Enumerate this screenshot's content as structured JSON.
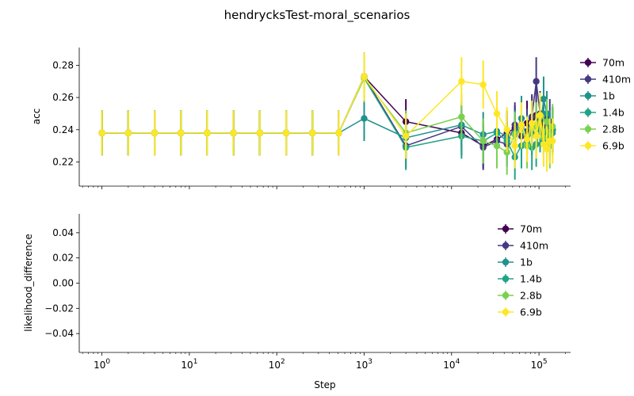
{
  "chart_data": [
    {
      "type": "line",
      "title": "hendrycksTest-moral_scenarios",
      "xlabel": "",
      "ylabel": "acc",
      "xscale": "log",
      "xlim": [
        0.55,
        230000
      ],
      "ylim": [
        0.205,
        0.291
      ],
      "yticks": [
        "0.22",
        "0.24",
        "0.26",
        "0.28"
      ],
      "legend_position": "right-outside",
      "colors": [
        "#440154",
        "#443983",
        "#21918c",
        "#20a386",
        "#7ad151",
        "#fde725"
      ],
      "series": [
        {
          "name": "70m",
          "x": [
            1,
            2,
            4,
            8,
            16,
            32,
            64,
            128,
            256,
            512,
            1000,
            3000,
            13000,
            23000,
            33000,
            43000,
            53000,
            63000,
            73000,
            83000,
            93000,
            103000,
            113000,
            123000,
            133000,
            143000
          ],
          "y": [
            0.238,
            0.238,
            0.238,
            0.238,
            0.238,
            0.238,
            0.238,
            0.238,
            0.238,
            0.238,
            0.273,
            0.245,
            0.238,
            0.23,
            0.234,
            0.238,
            0.241,
            0.243,
            0.244,
            0.247,
            0.249,
            0.246,
            0.238,
            0.242,
            0.236,
            0.24
          ],
          "err": [
            0.014,
            0.014,
            0.014,
            0.014,
            0.014,
            0.014,
            0.014,
            0.014,
            0.014,
            0.014,
            0.015,
            0.014,
            0.014,
            0.014,
            0.014,
            0.014,
            0.014,
            0.014,
            0.014,
            0.014,
            0.014,
            0.014,
            0.014,
            0.014,
            0.014,
            0.014
          ]
        },
        {
          "name": "410m",
          "x": [
            1,
            2,
            4,
            8,
            16,
            32,
            64,
            128,
            256,
            512,
            1000,
            3000,
            13000,
            23000,
            33000,
            43000,
            53000,
            63000,
            73000,
            83000,
            93000,
            103000,
            113000,
            123000,
            133000,
            143000
          ],
          "y": [
            0.238,
            0.238,
            0.238,
            0.238,
            0.238,
            0.238,
            0.238,
            0.238,
            0.238,
            0.238,
            0.273,
            0.23,
            0.242,
            0.229,
            0.233,
            0.231,
            0.243,
            0.236,
            0.239,
            0.248,
            0.27,
            0.25,
            0.244,
            0.247,
            0.245,
            0.24
          ],
          "err": [
            0.014,
            0.014,
            0.014,
            0.014,
            0.014,
            0.014,
            0.014,
            0.014,
            0.014,
            0.014,
            0.015,
            0.014,
            0.014,
            0.014,
            0.014,
            0.014,
            0.014,
            0.014,
            0.014,
            0.014,
            0.015,
            0.014,
            0.014,
            0.014,
            0.014,
            0.014
          ]
        },
        {
          "name": "1b",
          "x": [
            1,
            2,
            4,
            8,
            16,
            32,
            64,
            128,
            256,
            512,
            1000,
            3000,
            13000,
            23000,
            33000,
            43000,
            53000,
            63000,
            73000,
            83000,
            93000,
            103000,
            113000,
            123000,
            133000,
            143000
          ],
          "y": [
            0.238,
            0.238,
            0.238,
            0.238,
            0.238,
            0.238,
            0.238,
            0.238,
            0.238,
            0.238,
            0.247,
            0.235,
            0.243,
            0.237,
            0.239,
            0.236,
            0.238,
            0.247,
            0.233,
            0.238,
            0.242,
            0.24,
            0.259,
            0.25,
            0.238,
            0.24
          ],
          "err": [
            0.014,
            0.014,
            0.014,
            0.014,
            0.014,
            0.014,
            0.014,
            0.014,
            0.014,
            0.014,
            0.014,
            0.014,
            0.014,
            0.014,
            0.014,
            0.014,
            0.014,
            0.014,
            0.014,
            0.014,
            0.014,
            0.014,
            0.014,
            0.014,
            0.014,
            0.014
          ]
        },
        {
          "name": "1.4b",
          "x": [
            1,
            2,
            4,
            8,
            16,
            32,
            64,
            128,
            256,
            512,
            1000,
            3000,
            13000,
            23000,
            33000,
            43000,
            53000,
            63000,
            73000,
            83000,
            93000,
            103000,
            113000,
            123000,
            133000,
            143000
          ],
          "y": [
            0.238,
            0.238,
            0.238,
            0.238,
            0.238,
            0.238,
            0.238,
            0.238,
            0.238,
            0.238,
            0.272,
            0.229,
            0.236,
            0.233,
            0.238,
            0.233,
            0.223,
            0.23,
            0.235,
            0.229,
            0.231,
            0.24,
            0.232,
            0.238,
            0.234,
            0.238
          ],
          "err": [
            0.014,
            0.014,
            0.014,
            0.014,
            0.014,
            0.014,
            0.014,
            0.014,
            0.014,
            0.014,
            0.015,
            0.014,
            0.014,
            0.014,
            0.014,
            0.014,
            0.014,
            0.014,
            0.014,
            0.014,
            0.014,
            0.014,
            0.014,
            0.014,
            0.014,
            0.014
          ]
        },
        {
          "name": "2.8b",
          "x": [
            1,
            2,
            4,
            8,
            16,
            32,
            64,
            128,
            256,
            512,
            1000,
            3000,
            13000,
            23000,
            33000,
            43000,
            53000,
            63000,
            73000,
            83000,
            93000,
            103000,
            113000,
            123000,
            133000,
            143000
          ],
          "y": [
            0.238,
            0.238,
            0.238,
            0.238,
            0.238,
            0.238,
            0.238,
            0.238,
            0.238,
            0.238,
            0.272,
            0.238,
            0.248,
            0.233,
            0.23,
            0.226,
            0.237,
            0.242,
            0.23,
            0.241,
            0.243,
            0.248,
            0.235,
            0.245,
            0.23,
            0.242
          ],
          "err": [
            0.014,
            0.014,
            0.014,
            0.014,
            0.014,
            0.014,
            0.014,
            0.014,
            0.014,
            0.014,
            0.015,
            0.014,
            0.014,
            0.014,
            0.014,
            0.014,
            0.014,
            0.014,
            0.014,
            0.014,
            0.014,
            0.014,
            0.014,
            0.014,
            0.014,
            0.014
          ]
        },
        {
          "name": "6.9b",
          "x": [
            1,
            2,
            4,
            8,
            16,
            32,
            64,
            128,
            256,
            512,
            1000,
            3000,
            13000,
            23000,
            33000,
            43000,
            53000,
            63000,
            73000,
            83000,
            93000,
            103000,
            113000,
            123000,
            133000,
            143000
          ],
          "y": [
            0.238,
            0.238,
            0.238,
            0.238,
            0.238,
            0.238,
            0.238,
            0.238,
            0.238,
            0.238,
            0.273,
            0.236,
            0.27,
            0.268,
            0.25,
            0.24,
            0.23,
            0.243,
            0.234,
            0.244,
            0.236,
            0.249,
            0.231,
            0.228,
            0.233,
            0.233
          ],
          "err": [
            0.014,
            0.014,
            0.014,
            0.014,
            0.014,
            0.014,
            0.014,
            0.014,
            0.014,
            0.014,
            0.015,
            0.014,
            0.015,
            0.015,
            0.014,
            0.014,
            0.014,
            0.014,
            0.014,
            0.014,
            0.014,
            0.014,
            0.014,
            0.014,
            0.014,
            0.014
          ]
        }
      ]
    },
    {
      "type": "line",
      "xlabel": "Step",
      "ylabel": "likelihood_difference",
      "xscale": "log",
      "xlim": [
        0.55,
        230000
      ],
      "ylim": [
        -0.055,
        0.055
      ],
      "yticks": [
        "−0.04",
        "−0.02",
        "0.00",
        "0.02",
        "0.04"
      ],
      "xticks": [
        {
          "base": "10",
          "exp": "0",
          "value": 1
        },
        {
          "base": "10",
          "exp": "1",
          "value": 10
        },
        {
          "base": "10",
          "exp": "2",
          "value": 100
        },
        {
          "base": "10",
          "exp": "3",
          "value": 1000
        },
        {
          "base": "10",
          "exp": "4",
          "value": 10000
        },
        {
          "base": "10",
          "exp": "5",
          "value": 100000
        }
      ],
      "legend_position": "top-right",
      "colors": [
        "#440154",
        "#443983",
        "#21918c",
        "#20a386",
        "#7ad151",
        "#fde725"
      ],
      "series": [
        {
          "name": "70m",
          "x": [],
          "y": []
        },
        {
          "name": "410m",
          "x": [],
          "y": []
        },
        {
          "name": "1b",
          "x": [],
          "y": []
        },
        {
          "name": "1.4b",
          "x": [],
          "y": []
        },
        {
          "name": "2.8b",
          "x": [],
          "y": []
        },
        {
          "name": "6.9b",
          "x": [],
          "y": []
        }
      ]
    }
  ]
}
